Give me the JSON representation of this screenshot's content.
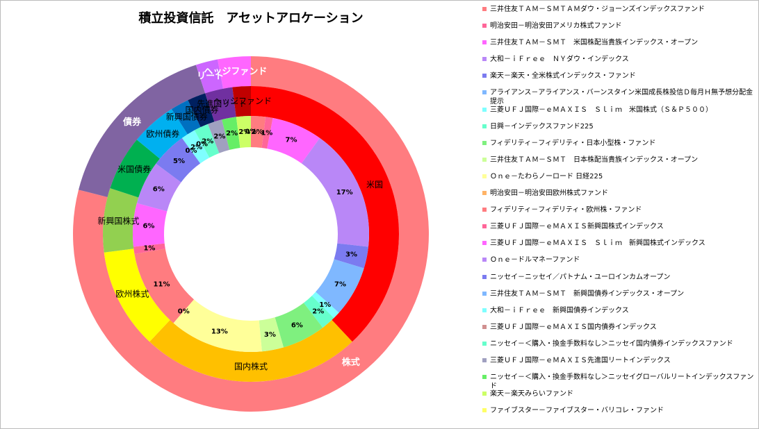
{
  "chart_data": {
    "type": "donut",
    "title": "積立投資信託　アセットアロケーション",
    "rings": [
      {
        "labels": [
          "株式",
          "債券",
          "リート",
          "ヘッジファンド"
        ],
        "values": [
          79,
          16,
          2,
          3
        ],
        "colors": [
          "#FF7C80",
          "#8064A2",
          "#CC66FF",
          "#FF66FF"
        ]
      },
      {
        "labels": [
          "米国",
          "国内株式",
          "欧州株式",
          "新興国株式",
          "米国債券",
          "欧州債券",
          "新興国債券",
          "国内債券",
          "先進国リート",
          "ヘッジファンド"
        ],
        "values": [
          38,
          24,
          11,
          7,
          6,
          5,
          2,
          2,
          3,
          2
        ],
        "colors": [
          "#FF0000",
          "#FFC000",
          "#FFFF00",
          "#92D050",
          "#00B050",
          "#00B0F0",
          "#0070C0",
          "#002060",
          "#7030A0",
          "#C00000"
        ]
      },
      {
        "labels": [
          "三井住友ＴＡＭ－ＳＭＴＡＭダウ・ジョーンズインデックスファンド",
          "明治安田－明治安田アメリカ株式ファンド",
          "三井住友ＴＡＭ－ＳＭＴ　米国株配当貴族インデックス・オープン",
          "大和－ｉＦｒｅｅ　ＮＹダウ・インデックス",
          "楽天－楽天・全米株式インデックス・ファンド",
          "アライアンス－アライアンス・バーンスタイン米国成長株投信Ｄ毎月Ｈ無予想分配金提示",
          "三菱ＵＦＪ国際－ｅＭＡＸＩＳ　Ｓｌｉｍ　米国株式（Ｓ＆Ｐ５００）",
          "日興－インデックスファンド225",
          "フィデリティ－フィデリティ・日本小型株・ファンド",
          "三井住友ＴＡＭ－ＳＭＴ　日本株配当貴族インデックス・オープン",
          "Ｏｎｅ－たわらノーロード 日経225",
          "明治安田－明治安田欧州株式ファンド",
          "フィデリティ－フィデリティ・欧州株・ファンド",
          "三菱ＵＦＪ国際－ｅＭＡＸＩＳ新興国株式インデックス",
          "三菱ＵＦＪ国際－ｅＭＡＸＩＳ　Ｓｌｉｍ　新興国株式インデックス",
          "Ｏｎｅ－ドルマネーファンド",
          "ニッセイ－ニッセイ／パトナム・ユーロインカムオープン",
          "三井住友ＴＡＭ－ＳＭＴ　新興国債券インデックス・オープン",
          "大和－ｉＦｒｅｅ　新興国債券インデックス",
          "三菱ＵＦＪ国際－ｅＭＡＸＩＳ国内債券インデックス",
          "ニッセイ－＜購入・換金手数料なし＞ニッセイ国内債券インデックスファンド",
          "三菱ＵＦＪ国際－ｅＭＡＸＩＳ先進国リートインデックス",
          "ニッセイ－＜購入・換金手数料なし＞ニッセイグローバルリートインデックスファンド",
          "楽天－楽天みらいファンド",
          "ファイブスター－ファイブスター・バリコレ・ファンド"
        ],
        "values": [
          2,
          1,
          7,
          17,
          3,
          7,
          1,
          2,
          6,
          3,
          13,
          0,
          11,
          1,
          6,
          6,
          5,
          0,
          2,
          0,
          2,
          2,
          2,
          2,
          0
        ],
        "value_labels": [
          "2%",
          "1%",
          "7%",
          "17%",
          "3%",
          "7%",
          "1%",
          "2%",
          "6%",
          "3%",
          "13%",
          "0%",
          "11%",
          "1%",
          "6%",
          "6%",
          "5%",
          "0%",
          "2%",
          "0%",
          "2%",
          "2%",
          "2%",
          "2%",
          "0%"
        ],
        "colors": [
          "#FF7C80",
          "#FF6699",
          "#FF66FF",
          "#B987F7",
          "#7B7BF0",
          "#7FB8FF",
          "#7FFFFF",
          "#66FFCC",
          "#7FF07F",
          "#CCFF99",
          "#FFFF99",
          "#FFB366",
          "#FF7C80",
          "#FF6699",
          "#FF66FF",
          "#B987F7",
          "#7B7BF0",
          "#7FB8FF",
          "#7FFFFF",
          "#D09090",
          "#66FFCC",
          "#A0A0C0",
          "#66EE66",
          "#CCFF66",
          "#FFFF66"
        ]
      }
    ]
  }
}
